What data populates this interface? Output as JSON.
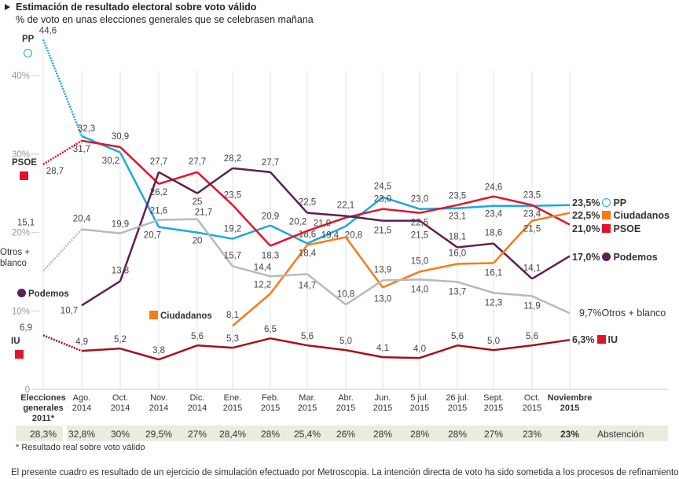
{
  "header": {
    "title": "Estimación de resultado electoral sobre voto válido",
    "subtitle": "% de voto en unas elecciones generales que se celebrasen mañana"
  },
  "chart_data": {
    "type": "line",
    "title": "Estimación de resultado electoral sobre voto válido",
    "subtitle": "% de voto en unas elecciones generales que se celebrasen mañana",
    "ylim": [
      0,
      45
    ],
    "yticks": [
      "0",
      "10%",
      "20%",
      "30%",
      "40%"
    ],
    "grid": "vertical",
    "categories": [
      [
        "Elecciones",
        "generales",
        "2011*"
      ],
      [
        "Ago.",
        "2014"
      ],
      [
        "Oct.",
        "2014"
      ],
      [
        "Nov.",
        "2014"
      ],
      [
        "Dic.",
        "2014"
      ],
      [
        "Ene.",
        "2015"
      ],
      [
        "Feb.",
        "2015"
      ],
      [
        "Mar.",
        "2015"
      ],
      [
        "Abr.",
        "2015"
      ],
      [
        "Jun.",
        "2015"
      ],
      [
        "5 jul.",
        "2015"
      ],
      [
        "26 jul.",
        "2015"
      ],
      [
        "Sept.",
        "2015"
      ],
      [
        "Oct.",
        "2015"
      ],
      [
        "Noviembre",
        "2015"
      ]
    ],
    "series": [
      {
        "name": "PP",
        "color": "#1aa9dc",
        "values": [
          44.6,
          32.3,
          30.2,
          20.7,
          20,
          19.2,
          20.9,
          18.6,
          20.8,
          24.5,
          23.0,
          23.1,
          23.4,
          23.4,
          23.5
        ],
        "labels": [
          "44,6",
          "32,3",
          "30,2",
          "20,7",
          "20",
          "19,2",
          "20,9",
          "18,6",
          "20,8",
          "24,5",
          "23,0",
          "23,1",
          "23,4",
          "23,4",
          ""
        ],
        "end": "23,5%"
      },
      {
        "name": "PSOE",
        "color": "#e3122b",
        "values": [
          28.7,
          31.7,
          30.9,
          26.2,
          27.7,
          23.5,
          18.3,
          20.2,
          21.9,
          23.0,
          22.5,
          23.5,
          24.6,
          23.5,
          21.0
        ],
        "labels": [
          "28,7",
          "31,7",
          "30,9",
          "26,2",
          "27,7",
          "23,5",
          "18,3",
          "20,2",
          "21,9",
          "23,0",
          "22,5",
          "23,5",
          "24,6",
          "23,5",
          ""
        ],
        "end": "21,0%"
      },
      {
        "name": "Podemos",
        "color": "#5e1f52",
        "values": [
          null,
          10.7,
          13.8,
          27.7,
          25,
          28.2,
          27.7,
          22.5,
          22.1,
          21.5,
          21.5,
          18.1,
          18.6,
          14.1,
          17.0
        ],
        "labels": [
          "",
          "10,7",
          "13,8",
          "27,7",
          "25",
          "28,2",
          "27,7",
          "22,5",
          "22,1",
          "21,5",
          "21,5",
          "18,1",
          "18,6",
          "14,1",
          ""
        ],
        "end": "17,0%"
      },
      {
        "name": "Ciudadanos",
        "color": "#f77b17",
        "values": [
          null,
          null,
          null,
          null,
          null,
          8.1,
          12.2,
          18.4,
          19.4,
          13.0,
          15.0,
          16.0,
          16.1,
          21.5,
          22.5
        ],
        "labels": [
          "",
          "",
          "",
          "",
          "",
          "8,1",
          "12,2",
          "18,4",
          "19,4",
          "13,0",
          "15,0",
          "16,0",
          "16,1",
          "21,5",
          ""
        ],
        "end": "22,5%"
      },
      {
        "name": "Otros + blanco",
        "color": "#b9b9b9",
        "values": [
          15.1,
          20.4,
          19.9,
          21.6,
          21.7,
          15.7,
          14.4,
          14.7,
          10.8,
          13.9,
          14.0,
          13.7,
          12.3,
          11.9,
          9.7
        ],
        "labels": [
          "15,1",
          "20,4",
          "19,9",
          "21,6",
          "21,7",
          "15,7",
          "14,4",
          "14,7",
          "10,8",
          "13,9",
          "14,0",
          "13,7",
          "12,3",
          "11,9",
          ""
        ],
        "end": "9,7%"
      },
      {
        "name": "IU",
        "color": "#a50f1f",
        "values": [
          6.9,
          4.9,
          5.2,
          3.8,
          5.6,
          5.3,
          6.5,
          5.6,
          5.0,
          4.1,
          4.0,
          5.6,
          5.0,
          5.6,
          6.3
        ],
        "labels": [
          "6,9",
          "4,9",
          "5,2",
          "3,8",
          "5,6",
          "5,3",
          "6,5",
          "5,6",
          "5,0",
          "4,1",
          "4,0",
          "5,6",
          "5,0",
          "5,6",
          ""
        ],
        "end": "6,3%"
      }
    ],
    "abstention": {
      "label": "Abstención",
      "values": [
        "28,3%",
        "32,8%",
        "30%",
        "29,5%",
        "27%",
        "28,4%",
        "28%",
        "25,4%",
        "26%",
        "28%",
        "28%",
        "28%",
        "27%",
        "23%",
        "23%"
      ]
    }
  },
  "legend_left": {
    "pp": "PP",
    "psoe": "PSOE",
    "otros": [
      "Otros +",
      "blanco"
    ],
    "podemos": "Podemos",
    "ciudadanos": "Ciudadanos",
    "iu": "IU"
  },
  "footnote": "* Resultado real sobre voto válido",
  "note": "El presente cuadro es resultado de un ejercicio de simulación efectuado por Metroscopia. La intención directa de voto ha sido sometida a los procesos de refinamiento y"
}
